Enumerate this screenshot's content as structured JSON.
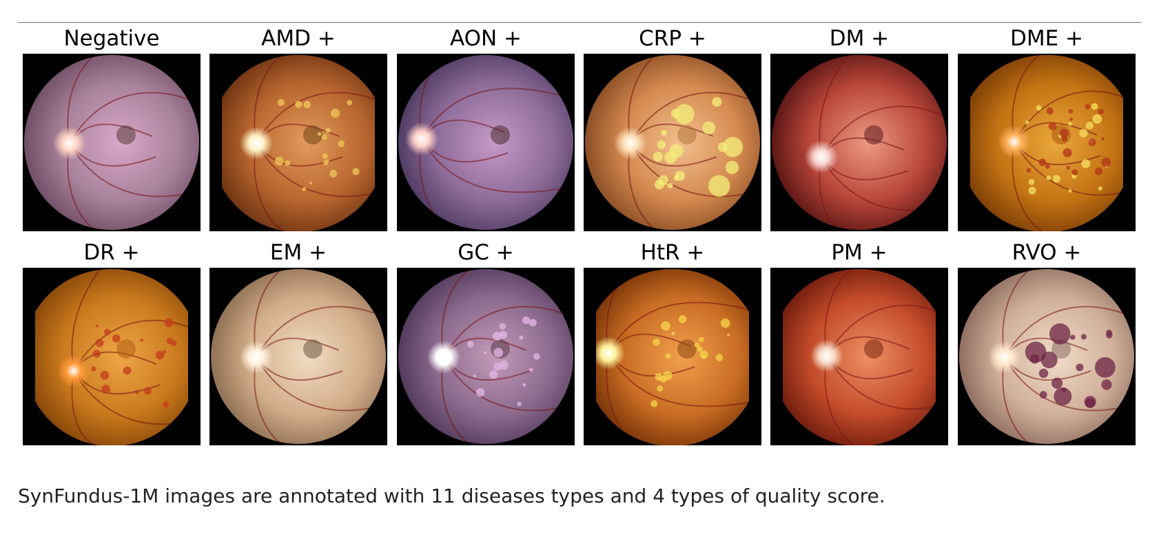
{
  "figure": {
    "panels": [
      {
        "label": "Negative",
        "tone": [
          "#d8a9c8",
          "#a9829b",
          "#6e4d64"
        ],
        "disc": "#ffd6c4",
        "disc_pos": "left",
        "fovea": "#5a3a3a",
        "clip": "round",
        "lesions": []
      },
      {
        "label": "AMD +",
        "tone": [
          "#e29b5a",
          "#b8662f",
          "#6e3311"
        ],
        "disc": "#fff3c7",
        "disc_pos": "left",
        "fovea": "#6e4518",
        "clip": "flat",
        "lesions": [
          "#f0c85a"
        ]
      },
      {
        "label": "AON +",
        "tone": [
          "#c79ac8",
          "#8e6c9a",
          "#4f3b63"
        ],
        "disc": "#ffd1c9",
        "disc_pos": "far-left",
        "fovea": "#4a2b2b",
        "clip": "round",
        "lesions": []
      },
      {
        "label": "CRP +",
        "tone": [
          "#f2c08d",
          "#d4894f",
          "#8a4d25"
        ],
        "disc": "#ffe0b8",
        "disc_pos": "left",
        "fovea": "#b4763e",
        "clip": "round",
        "lesions": [
          "#f3ef7a"
        ]
      },
      {
        "label": "DM +",
        "tone": [
          "#ec9a84",
          "#b9463a",
          "#5a1614"
        ],
        "disc": "#f7d4cf",
        "disc_pos": "low-left",
        "fovea": "#5c1a1a",
        "clip": "round",
        "lesions": []
      },
      {
        "label": "DME +",
        "tone": [
          "#eaa83c",
          "#c47413",
          "#7d3e06"
        ],
        "disc": "#ffb25a",
        "disc_pos": "center-left",
        "fovea": "#a5560d",
        "clip": "flat",
        "lesions": [
          "#f7e160",
          "#b3331b"
        ]
      },
      {
        "label": "DR +",
        "tone": [
          "#eda647",
          "#c97a1c",
          "#874609"
        ],
        "disc": "#ff9a3a",
        "disc_pos": "low-left",
        "fovea": "#b25c13",
        "clip": "flat",
        "lesions": [
          "#c43b1d"
        ]
      },
      {
        "label": "EM +",
        "tone": [
          "#f2dcc2",
          "#d2ae8a",
          "#8e6e52"
        ],
        "disc": "#fff0dc",
        "disc_pos": "left",
        "fovea": "#6f5544",
        "clip": "round",
        "lesions": []
      },
      {
        "label": "GC +",
        "tone": [
          "#c49ab9",
          "#8c6b8e",
          "#51395a"
        ],
        "disc": "#ffffff",
        "disc_pos": "left",
        "fovea": "#5a3a4d",
        "clip": "round",
        "lesions": [
          "#e6b7e6"
        ]
      },
      {
        "label": "HtR +",
        "tone": [
          "#f0a04d",
          "#c96d24",
          "#7a3508"
        ],
        "disc": "#fff39a",
        "disc_pos": "far-left",
        "fovea": "#8c4714",
        "clip": "flat",
        "lesions": [
          "#f6d64a"
        ]
      },
      {
        "label": "PM +",
        "tone": [
          "#ee9064",
          "#c44b2a",
          "#6e1c0d"
        ],
        "disc": "#f7dcc8",
        "disc_pos": "center-left",
        "fovea": "#7a2710",
        "clip": "flat",
        "lesions": []
      },
      {
        "label": "RVO +",
        "tone": [
          "#f1dcc8",
          "#d1b09a",
          "#8e6c5e"
        ],
        "disc": "#ffe8cc",
        "disc_pos": "left",
        "fovea": "#8a6a60",
        "clip": "round",
        "lesions": [
          "#6e2446"
        ]
      }
    ]
  },
  "caption": "SynFundus-1M images are annotated with 11 diseases types and 4 types of quality score."
}
